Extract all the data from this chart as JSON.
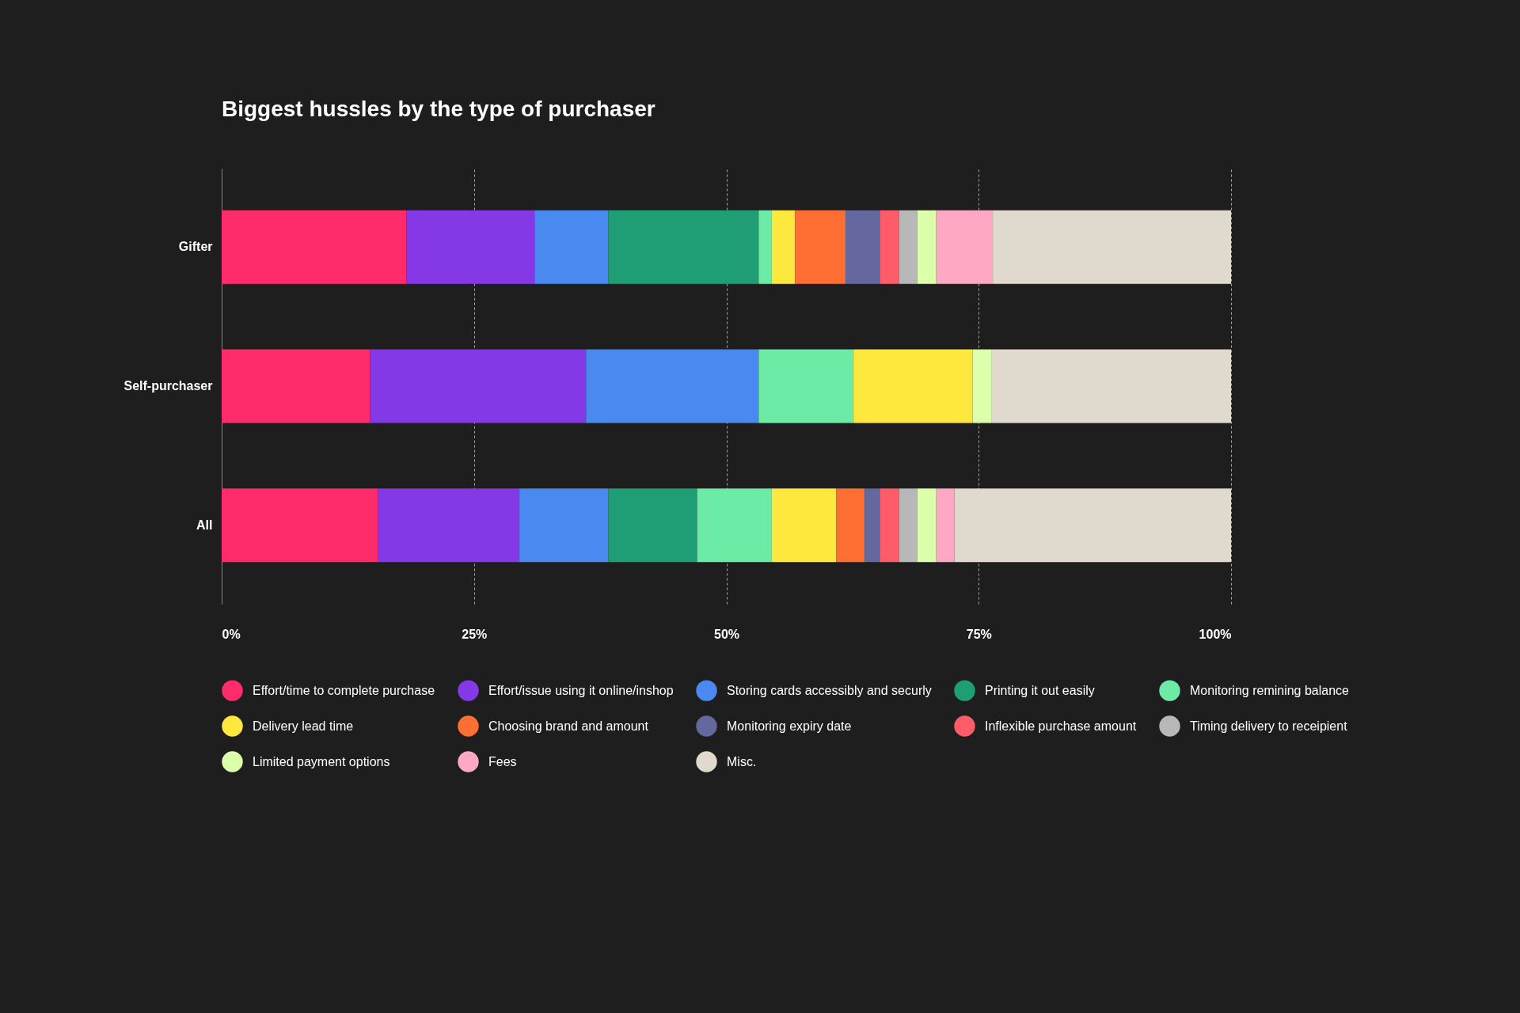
{
  "chart_data": {
    "type": "bar",
    "title": "Biggest hussles by the type of purchaser",
    "orientation": "horizontal",
    "stacked": true,
    "categories": [
      "Gifter",
      "Self-purchaser",
      "All"
    ],
    "series": [
      {
        "name": "Effort/time to complete purchase",
        "color": "#ff2b6b",
        "values": [
          18.3,
          14.7,
          15.5
        ]
      },
      {
        "name": "Effort/issue using it online/inshop",
        "color": "#8538e6",
        "values": [
          12.7,
          21.4,
          14.0
        ]
      },
      {
        "name": "Storing cards accessibly and securly",
        "color": "#4a8af0",
        "values": [
          7.3,
          17.1,
          8.8
        ]
      },
      {
        "name": "Printing it out easily",
        "color": "#1f9e76",
        "values": [
          14.9,
          null,
          8.8
        ]
      },
      {
        "name": "Monitoring remining balance",
        "color": "#6ceba6",
        "values": [
          1.3,
          9.4,
          7.4
        ]
      },
      {
        "name": "Delivery lead time",
        "color": "#ffe83d",
        "values": [
          2.3,
          11.8,
          6.4
        ]
      },
      {
        "name": "Choosing brand and amount",
        "color": "#ff6f33",
        "values": [
          5.0,
          null,
          2.8
        ]
      },
      {
        "name": "Monitoring expiry date",
        "color": "#65679f",
        "values": [
          3.4,
          null,
          1.5
        ]
      },
      {
        "name": "Inflexible purchase amount",
        "color": "#ff5c69",
        "values": [
          1.9,
          null,
          1.9
        ]
      },
      {
        "name": "Timing delivery to receipient",
        "color": "#b8b8b8",
        "values": [
          1.8,
          null,
          1.8
        ]
      },
      {
        "name": "Limited payment options",
        "color": "#dcffac",
        "values": [
          1.9,
          1.9,
          1.9
        ]
      },
      {
        "name": "Fees",
        "color": "#ffa8c3",
        "values": [
          5.6,
          null,
          1.8
        ]
      },
      {
        "name": "Misc.",
        "color": "#e0d9ce",
        "values": [
          23.6,
          23.7,
          27.4
        ]
      }
    ],
    "xlim": [
      0,
      100
    ],
    "xticks": [
      {
        "value": 0,
        "label": "0%"
      },
      {
        "value": 25,
        "label": "25%"
      },
      {
        "value": 50,
        "label": "50%"
      },
      {
        "value": 75,
        "label": "75%"
      },
      {
        "value": 100,
        "label": "100%"
      }
    ],
    "grid": "x",
    "legend": "bottom"
  }
}
